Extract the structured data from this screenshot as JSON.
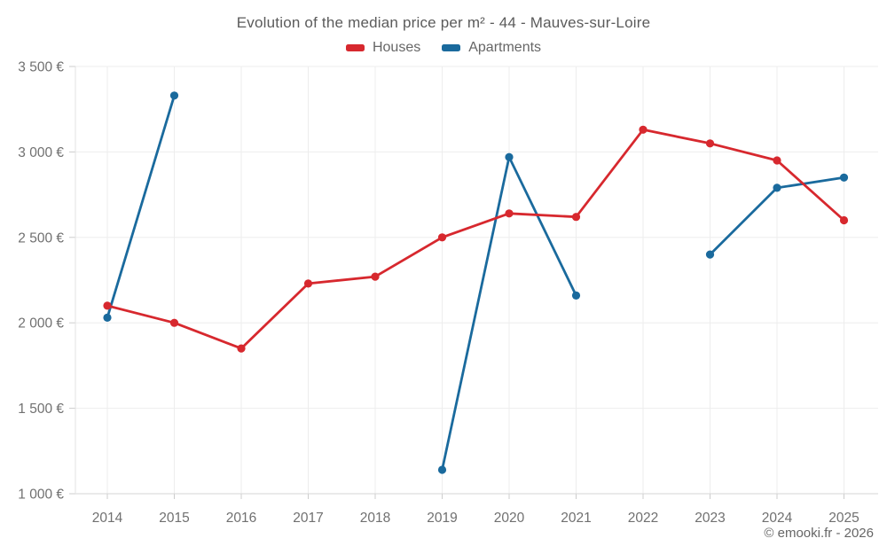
{
  "header": {
    "title": "Evolution of the median price per m² - 44 - Mauves-sur-Loire"
  },
  "legend": {
    "items": [
      {
        "label": "Houses",
        "color": "#d7282e"
      },
      {
        "label": "Apartments",
        "color": "#1a6a9d"
      }
    ]
  },
  "footer": {
    "credit": "© emooki.fr - 2026"
  },
  "chart_data": {
    "type": "line",
    "title": "Evolution of the median price per m² - 44 - Mauves-sur-Loire",
    "xlabel": "",
    "ylabel": "",
    "x": [
      "2014",
      "2015",
      "2016",
      "2017",
      "2018",
      "2019",
      "2020",
      "2021",
      "2022",
      "2023",
      "2024",
      "2025"
    ],
    "series": [
      {
        "name": "Houses",
        "color": "#d7282e",
        "values": [
          2100,
          2000,
          1850,
          2230,
          2270,
          2500,
          2640,
          2620,
          3130,
          3050,
          2950,
          2600
        ]
      },
      {
        "name": "Apartments",
        "color": "#1a6a9d",
        "values": [
          2030,
          3330,
          null,
          null,
          null,
          1140,
          2970,
          2160,
          null,
          2400,
          2790,
          2850
        ]
      }
    ],
    "ylim": [
      1000,
      3500
    ],
    "yticks": [
      {
        "value": 1000,
        "label": "1 000 €"
      },
      {
        "value": 1500,
        "label": "1 500 €"
      },
      {
        "value": 2000,
        "label": "2 000 €"
      },
      {
        "value": 2500,
        "label": "2 500 €"
      },
      {
        "value": 3000,
        "label": "3 000 €"
      },
      {
        "value": 3500,
        "label": "3 500 €"
      }
    ],
    "grid": true,
    "legend_position": "top",
    "unit": "€"
  }
}
